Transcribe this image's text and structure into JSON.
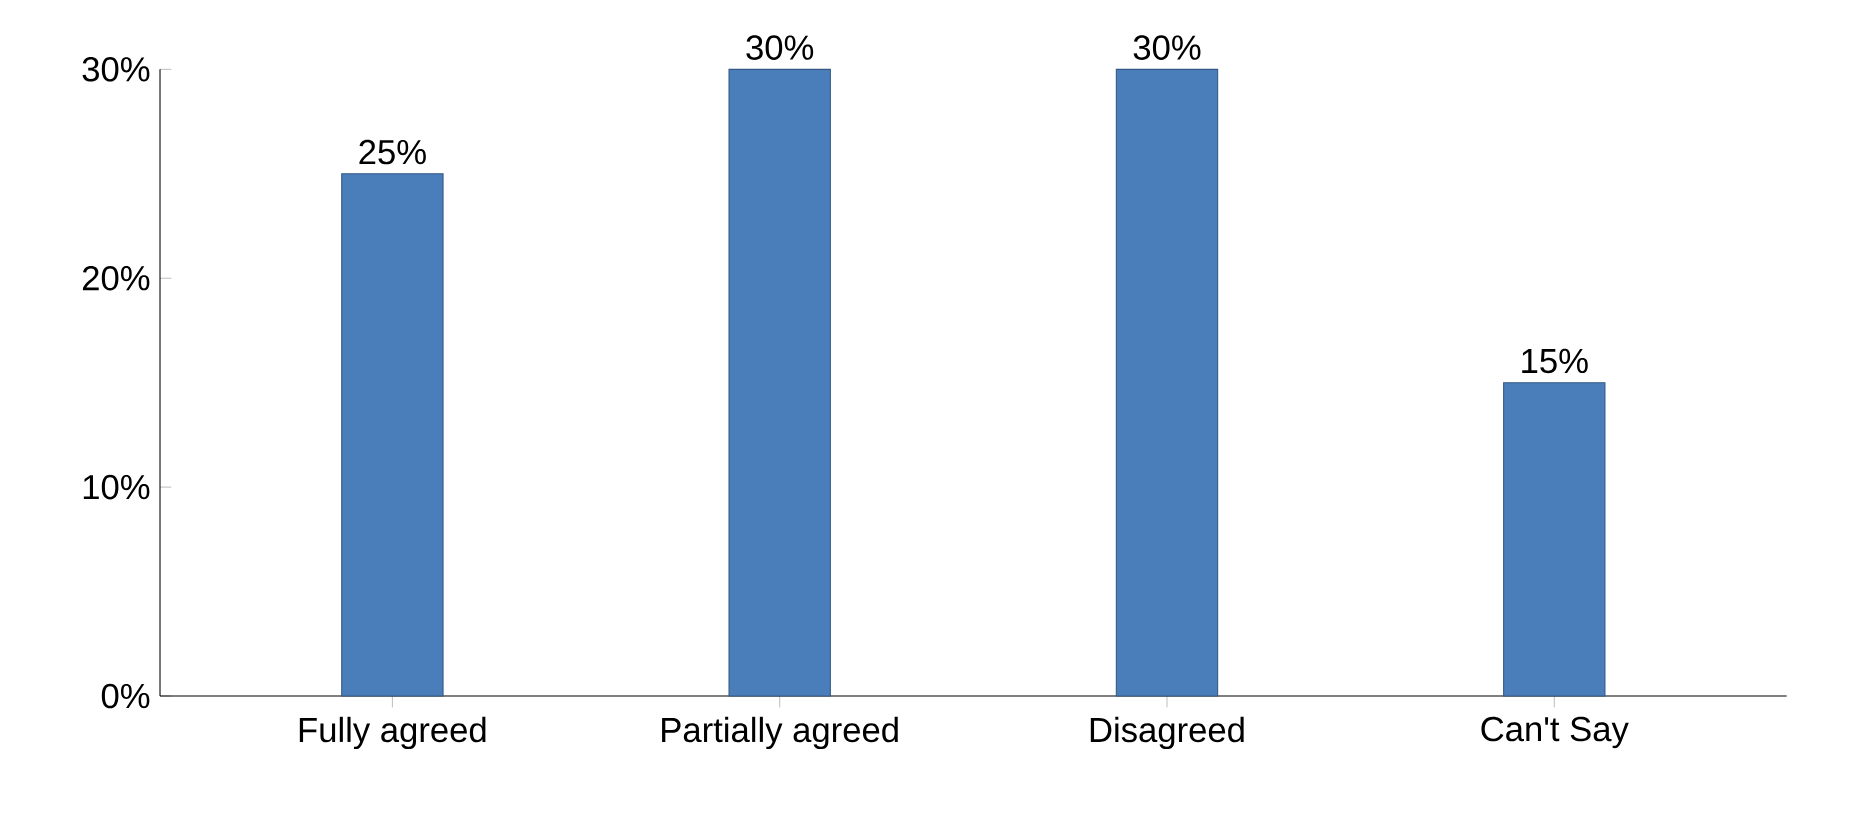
{
  "chart_data": {
    "type": "bar",
    "categories": [
      "Fully agreed",
      "Partially agreed",
      "Disagreed",
      "Can't Say"
    ],
    "values": [
      25,
      30,
      30,
      15
    ],
    "value_labels": [
      "25%",
      "30%",
      "30%",
      "15%"
    ],
    "color": "#4a7ebb",
    "ylim": [
      0,
      30
    ],
    "yticks": [
      {
        "value": 0,
        "label": "0%"
      },
      {
        "value": 10,
        "label": "10%"
      },
      {
        "value": 20,
        "label": "20%"
      },
      {
        "value": 30,
        "label": "30%"
      }
    ],
    "grid": false
  }
}
